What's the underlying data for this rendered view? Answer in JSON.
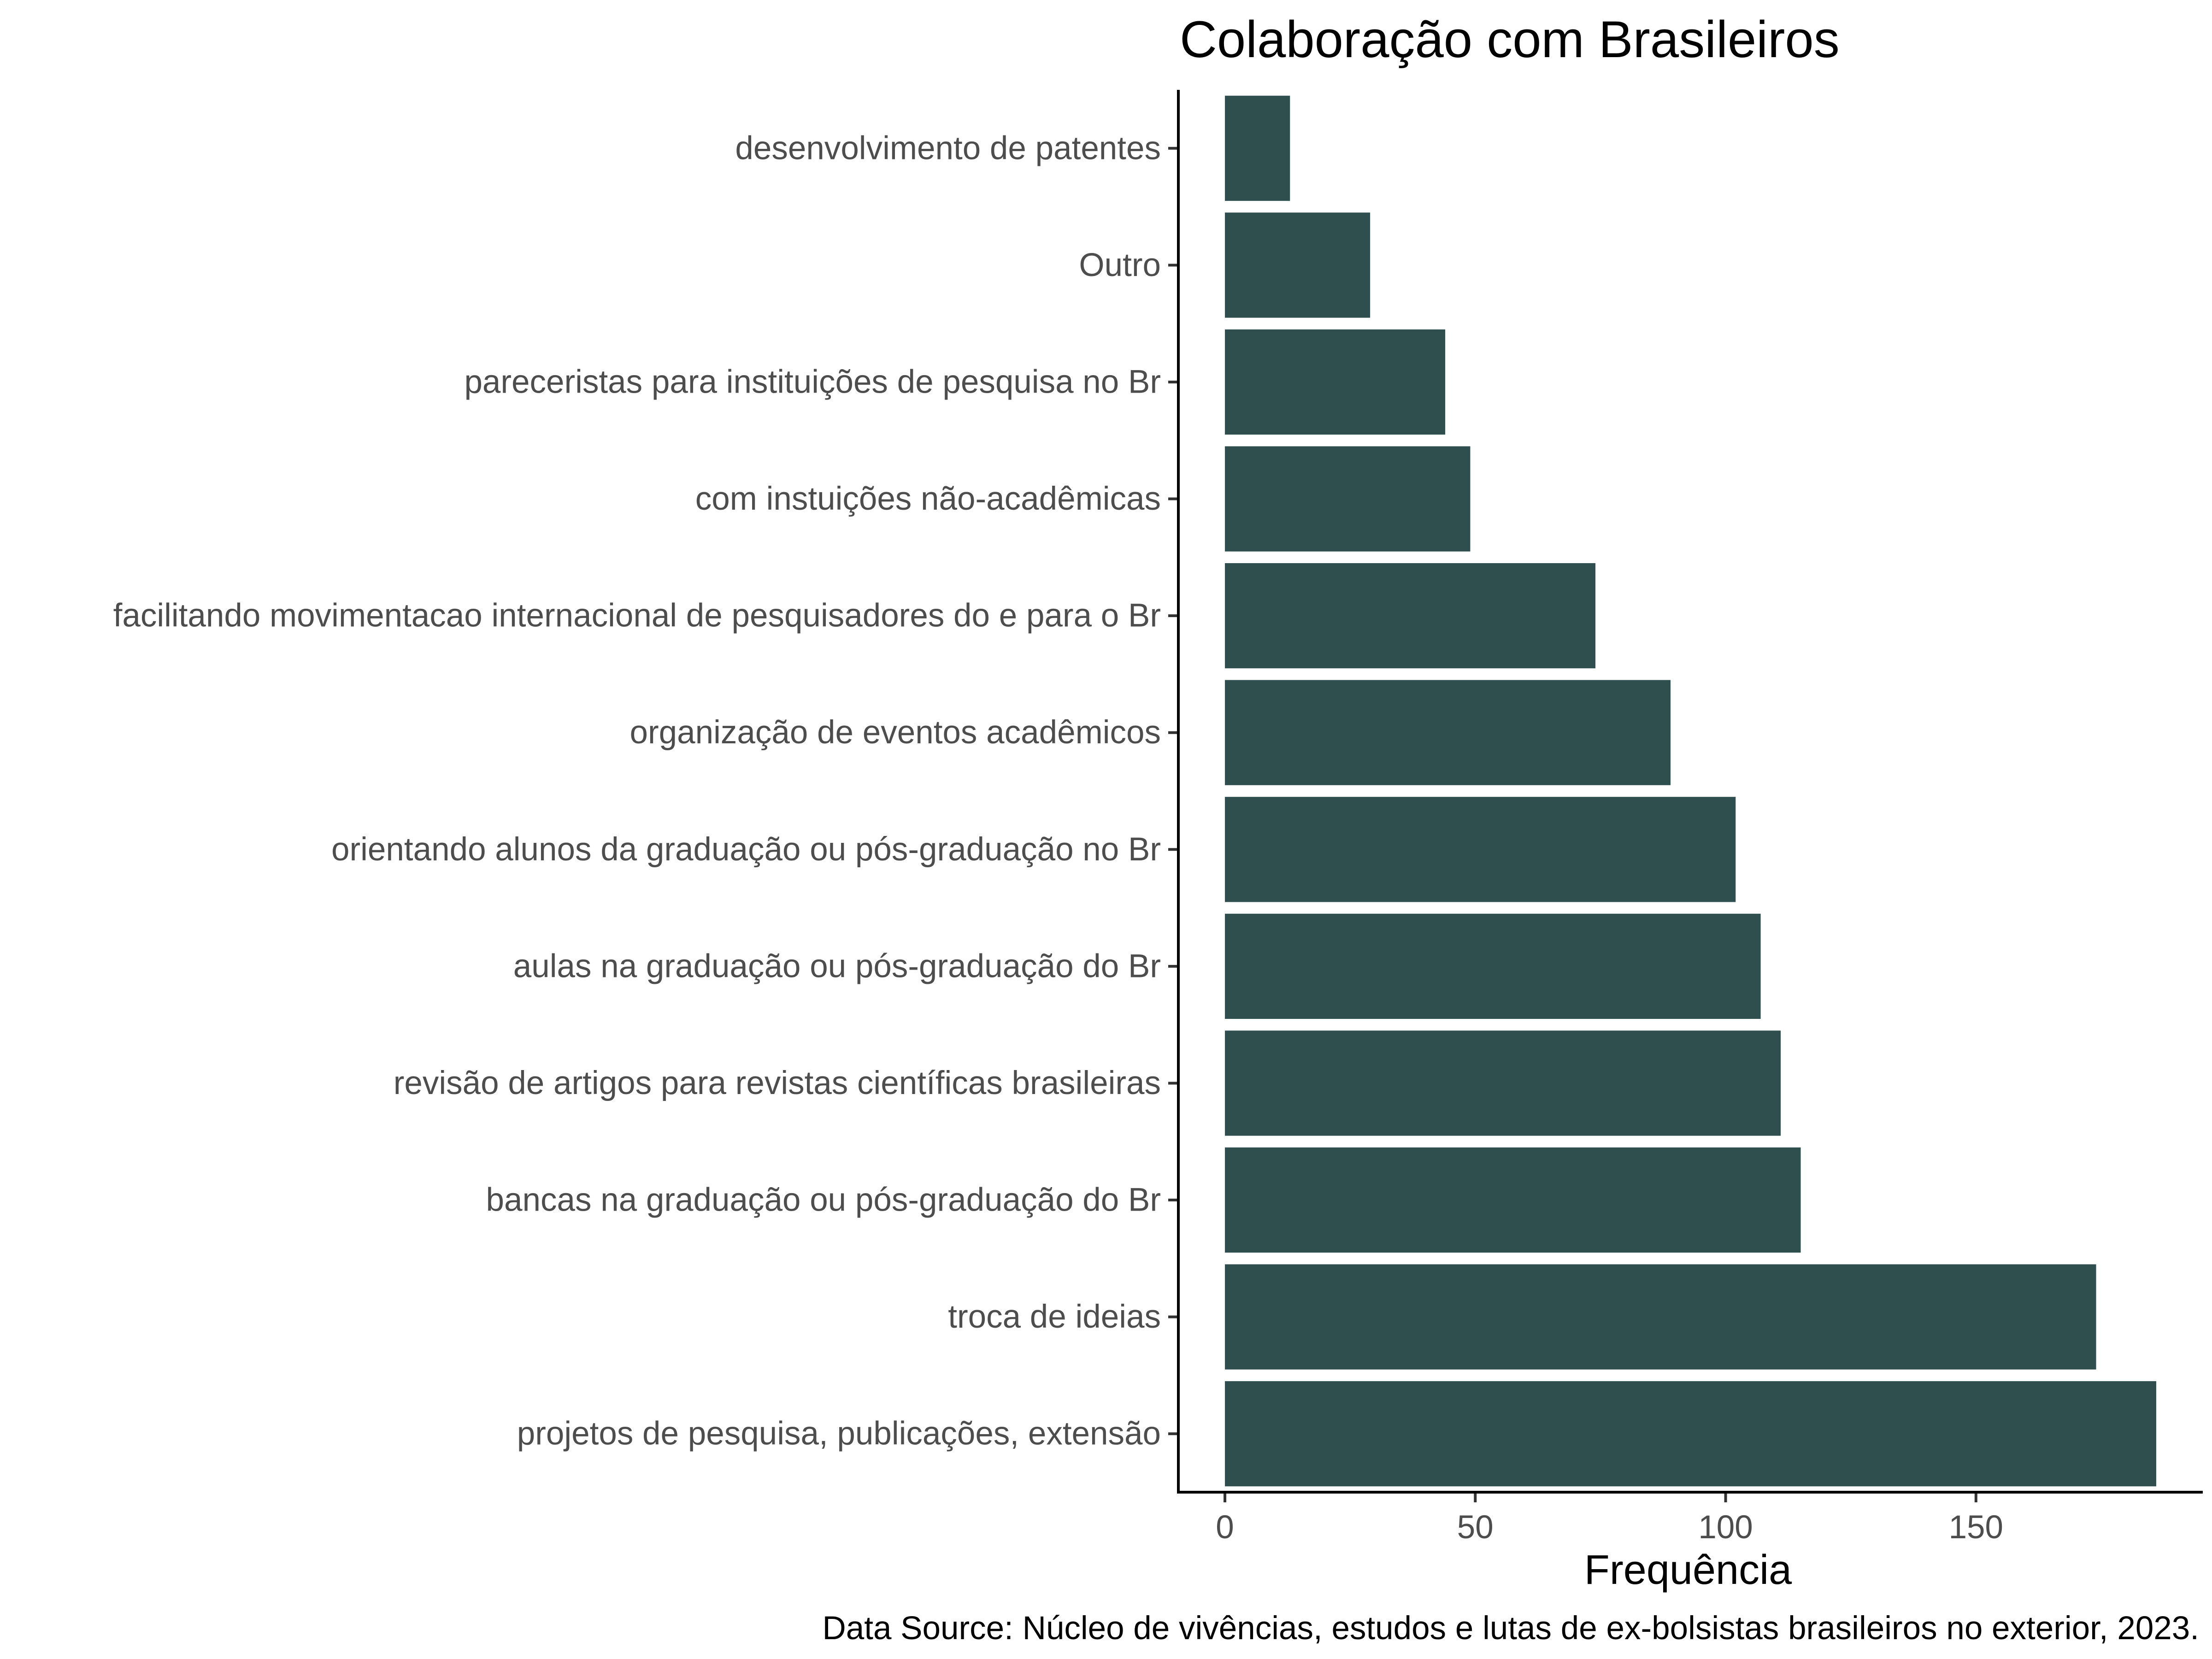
{
  "chart_data": {
    "type": "bar",
    "orientation": "horizontal",
    "title": "Colaboração com Brasileiros",
    "xlabel": "Frequência",
    "ylabel": "",
    "caption": "Data Source: Núcleo de vivências, estudos e lutas de ex-bolsistas brasileiros no exterior, 2023.",
    "categories": [
      "projetos de pesquisa, publicações, extensão",
      "troca de ideias",
      "bancas na graduação ou pós-graduação do Br",
      "revisão de artigos para revistas científicas brasileiras",
      "aulas na graduação ou pós-graduação do Br",
      "orientando alunos da graduação ou pós-graduação no Br",
      "organização de eventos acadêmicos",
      "facilitando movimentacao internacional de pesquisadores do e para o Br",
      "com instuições não-acadêmicas",
      "pareceristas para instituições de pesquisa no Br ",
      "Outro",
      "desenvolvimento de patentes"
    ],
    "values": [
      186,
      174,
      115,
      111,
      107,
      102,
      89,
      74,
      49,
      44,
      29,
      13
    ],
    "xlim": [
      -9.3,
      195.3
    ],
    "xticks": [
      0,
      50,
      100,
      150
    ],
    "bar_color": "#2f4f4f",
    "grid": false,
    "legend": "none"
  }
}
